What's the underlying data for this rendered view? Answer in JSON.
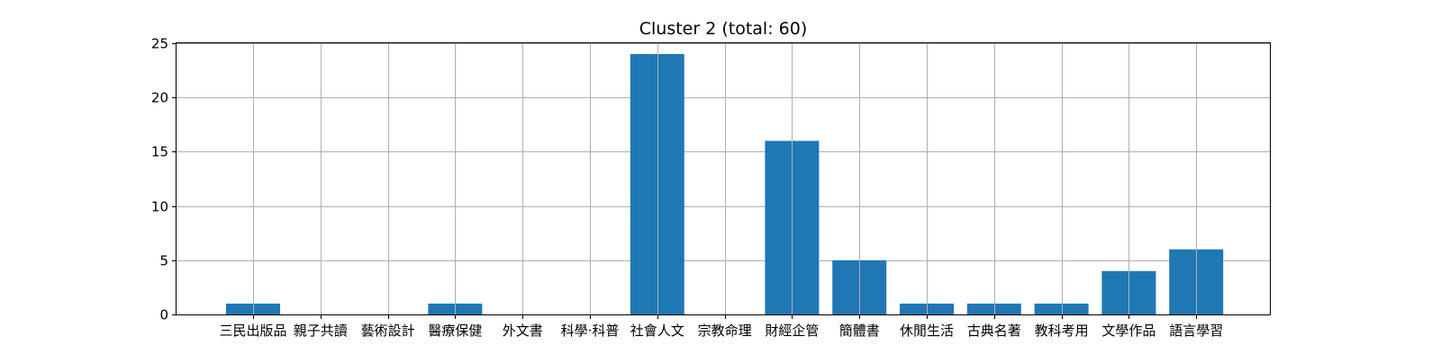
{
  "chart_data": {
    "type": "bar",
    "title": "Cluster 2 (total: 60)",
    "xlabel": "",
    "ylabel": "",
    "categories": [
      "三民出版品",
      "親子共讀",
      "藝術設計",
      "醫療保健",
      "外文書",
      "科學·科普",
      "社會人文",
      "宗教命理",
      "財經企管",
      "簡體書",
      "休閒生活",
      "古典名著",
      "教科考用",
      "文學作品",
      "語言學習"
    ],
    "values": [
      1,
      0,
      0,
      1,
      0,
      0,
      24,
      0,
      16,
      5,
      1,
      1,
      1,
      4,
      6
    ],
    "ylim": [
      0,
      25
    ],
    "yticks": [
      0,
      5,
      10,
      15,
      20,
      25
    ],
    "grid": true,
    "bar_color": "#1f77b4"
  }
}
